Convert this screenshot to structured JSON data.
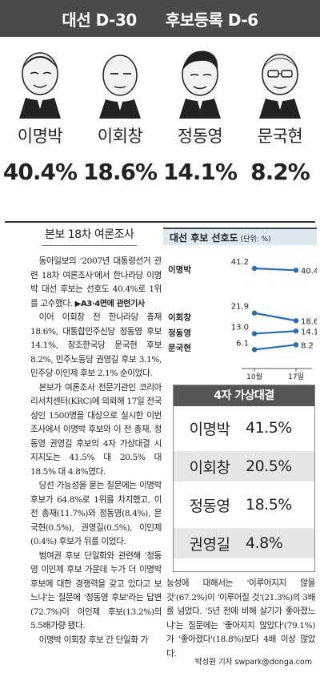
{
  "header": {
    "left": "대선 D-30",
    "right": "후보등록 D-6"
  },
  "candidates": [
    {
      "name": "이명박",
      "pct": "40.4%"
    },
    {
      "name": "이회창",
      "pct": "18.6%"
    },
    {
      "name": "정동영",
      "pct": "14.1%"
    },
    {
      "name": "문국현",
      "pct": "8.2%"
    }
  ],
  "article": {
    "kicker": "본보 18차 여론조사",
    "p1": "동아일보의 '2007년 대통령선거 관련 18차 여론조사'에서 한나라당 이명박 대선 후보는 선호도 40.4%로 1위를 고수했다.",
    "p1_ref": "▶A3·4면에 관련기사",
    "p2": "이어 이회창 전 한나라당 총재 18.6%, 대통합민주신당 정동영 후보 14.1%, 창조한국당 문국현 후보 8.2%, 민주노동당 권영길 후보 3.1%, 민주당 이인제 후보 2.1% 순이었다.",
    "p3": "본보가 여론조사 전문기관인 코리아리서치센터(KRC)에 의뢰해 17일 전국 성인 1500명을 대상으로 실시한 이번 조사에서 이명박 후보와 이 전 총재, 정동영 권영길 후보의 4자 가상대결 시 지지도는 41.5% 대 20.5% 대 18.5% 대 4.8%였다.",
    "p4": "당선 가능성을 묻는 질문에는 이명박 후보가 64.8%로 1위를 차지했고, 이 전 총재(11.7%)와 정동영(8.4%), 문국현(0.5%), 권영길(0.5%), 이인제(0.4%) 후보가 뒤를 이었다.",
    "p5": "범여권 후보 단일화와 관련해 '정동영 이인제 후보 가운데 누가 더 이명박 후보에 대한 경쟁력을 갖고 있다고 보느냐'는 질문에 '정동영 후보'라는 답변(72.7%)이 이인제 후보(13.2%)의 5.5배가량 됐다.",
    "p6": "이명박 이회창 후보 간 단일화 가",
    "right_p": "능성에 대해서는 '이루어지지 않을 것'(67.2%)이 '이루어질 것'(21.3%)의 3배를 넘었다. '5년 전에 비해 살기가 좋아졌느냐'는 질문에는 '좋아지지 않았다'(79.1%)가 '좋아졌다'(18.8%)보다 4배 이상 많았다.",
    "byline": "박성원 기자 swpark@donga.com"
  },
  "chart_data": {
    "type": "line",
    "title": "대선 후보 선호도",
    "unit_note": "(단위: %)",
    "x": [
      "10월",
      "17일"
    ],
    "series": [
      {
        "name": "이명박",
        "values": [
          41.2,
          40.4
        ]
      },
      {
        "name": "이회창",
        "values": [
          21.9,
          18.6
        ]
      },
      {
        "name": "정동영",
        "values": [
          13.0,
          14.1
        ]
      },
      {
        "name": "문국현",
        "values": [
          6.1,
          8.2
        ]
      }
    ],
    "ylim": [
      0,
      45
    ],
    "grid": false,
    "color": "#2a6db5"
  },
  "poll": {
    "title": "4자 가상대결",
    "rows": [
      {
        "name": "이명박",
        "value": "41.5%"
      },
      {
        "name": "이회창",
        "value": "20.5%"
      },
      {
        "name": "정동영",
        "value": "18.5%"
      },
      {
        "name": "권영길",
        "value": "4.8%"
      }
    ]
  }
}
